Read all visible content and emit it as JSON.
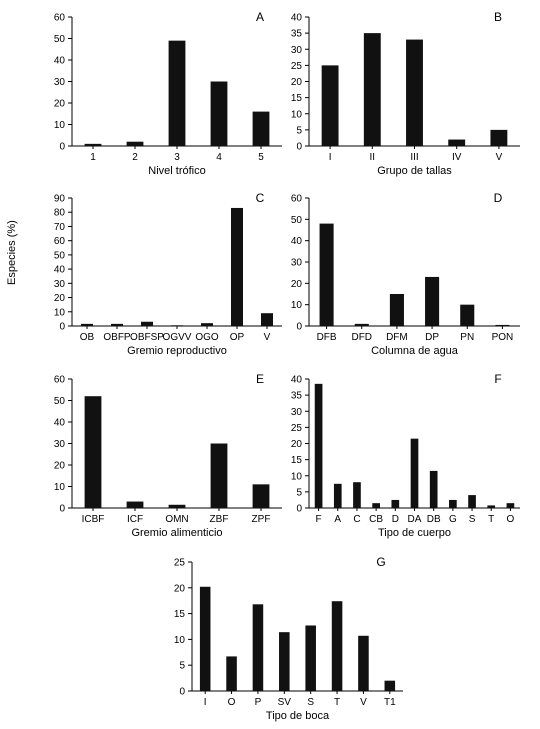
{
  "figure": {
    "ylabel": "Especies (%)"
  },
  "chart_data": [
    {
      "type": "bar",
      "panel": "A",
      "xlabel": "Nivel trófico",
      "ylim": [
        0,
        60
      ],
      "yticks": [
        0,
        10,
        20,
        30,
        40,
        50,
        60
      ],
      "categories": [
        "1",
        "2",
        "3",
        "4",
        "5"
      ],
      "values": [
        1,
        2,
        49,
        30,
        16
      ]
    },
    {
      "type": "bar",
      "panel": "B",
      "xlabel": "Grupo de tallas",
      "ylim": [
        0,
        40
      ],
      "yticks": [
        0,
        5,
        10,
        15,
        20,
        25,
        30,
        35,
        40
      ],
      "categories": [
        "I",
        "II",
        "III",
        "IV",
        "V"
      ],
      "values": [
        25,
        35,
        33,
        2,
        5
      ]
    },
    {
      "type": "bar",
      "panel": "C",
      "xlabel": "Gremio reproductivo",
      "ylim": [
        0,
        90
      ],
      "yticks": [
        0,
        10,
        20,
        30,
        40,
        50,
        60,
        70,
        80,
        90
      ],
      "categories": [
        "OB",
        "OBFP",
        "OBFSP",
        "OGVV",
        "OGO",
        "OP",
        "V"
      ],
      "values": [
        1.5,
        1.5,
        3,
        0.5,
        2,
        83,
        9
      ]
    },
    {
      "type": "bar",
      "panel": "D",
      "xlabel": "Columna de agua",
      "ylim": [
        0,
        60
      ],
      "yticks": [
        0,
        10,
        20,
        30,
        40,
        50,
        60
      ],
      "categories": [
        "DFB",
        "DFD",
        "DFM",
        "DP",
        "PN",
        "PON"
      ],
      "values": [
        48,
        1,
        15,
        23,
        10,
        0.5
      ]
    },
    {
      "type": "bar",
      "panel": "E",
      "xlabel": "Gremio alimenticio",
      "ylim": [
        0,
        60
      ],
      "yticks": [
        0,
        10,
        20,
        30,
        40,
        50,
        60
      ],
      "categories": [
        "ICBF",
        "ICF",
        "OMN",
        "ZBF",
        "ZPF"
      ],
      "values": [
        52,
        3,
        1.5,
        30,
        11
      ]
    },
    {
      "type": "bar",
      "panel": "F",
      "xlabel": "Tipo de cuerpo",
      "ylim": [
        0,
        40
      ],
      "yticks": [
        0,
        5,
        10,
        15,
        20,
        25,
        30,
        35,
        40
      ],
      "categories": [
        "F",
        "A",
        "C",
        "CB",
        "D",
        "DA",
        "DB",
        "G",
        "S",
        "T",
        "O"
      ],
      "values": [
        38.5,
        7.5,
        8,
        1.5,
        2.5,
        21.5,
        11.5,
        2.5,
        4,
        0.8,
        1.5
      ]
    },
    {
      "type": "bar",
      "panel": "G",
      "xlabel": "Tipo de boca",
      "ylim": [
        0,
        25
      ],
      "yticks": [
        0,
        5,
        10,
        15,
        20,
        25
      ],
      "categories": [
        "I",
        "O",
        "P",
        "SV",
        "S",
        "T",
        "V",
        "T1"
      ],
      "values": [
        20.2,
        6.7,
        16.8,
        11.4,
        12.7,
        17.4,
        10.7,
        2
      ]
    }
  ]
}
